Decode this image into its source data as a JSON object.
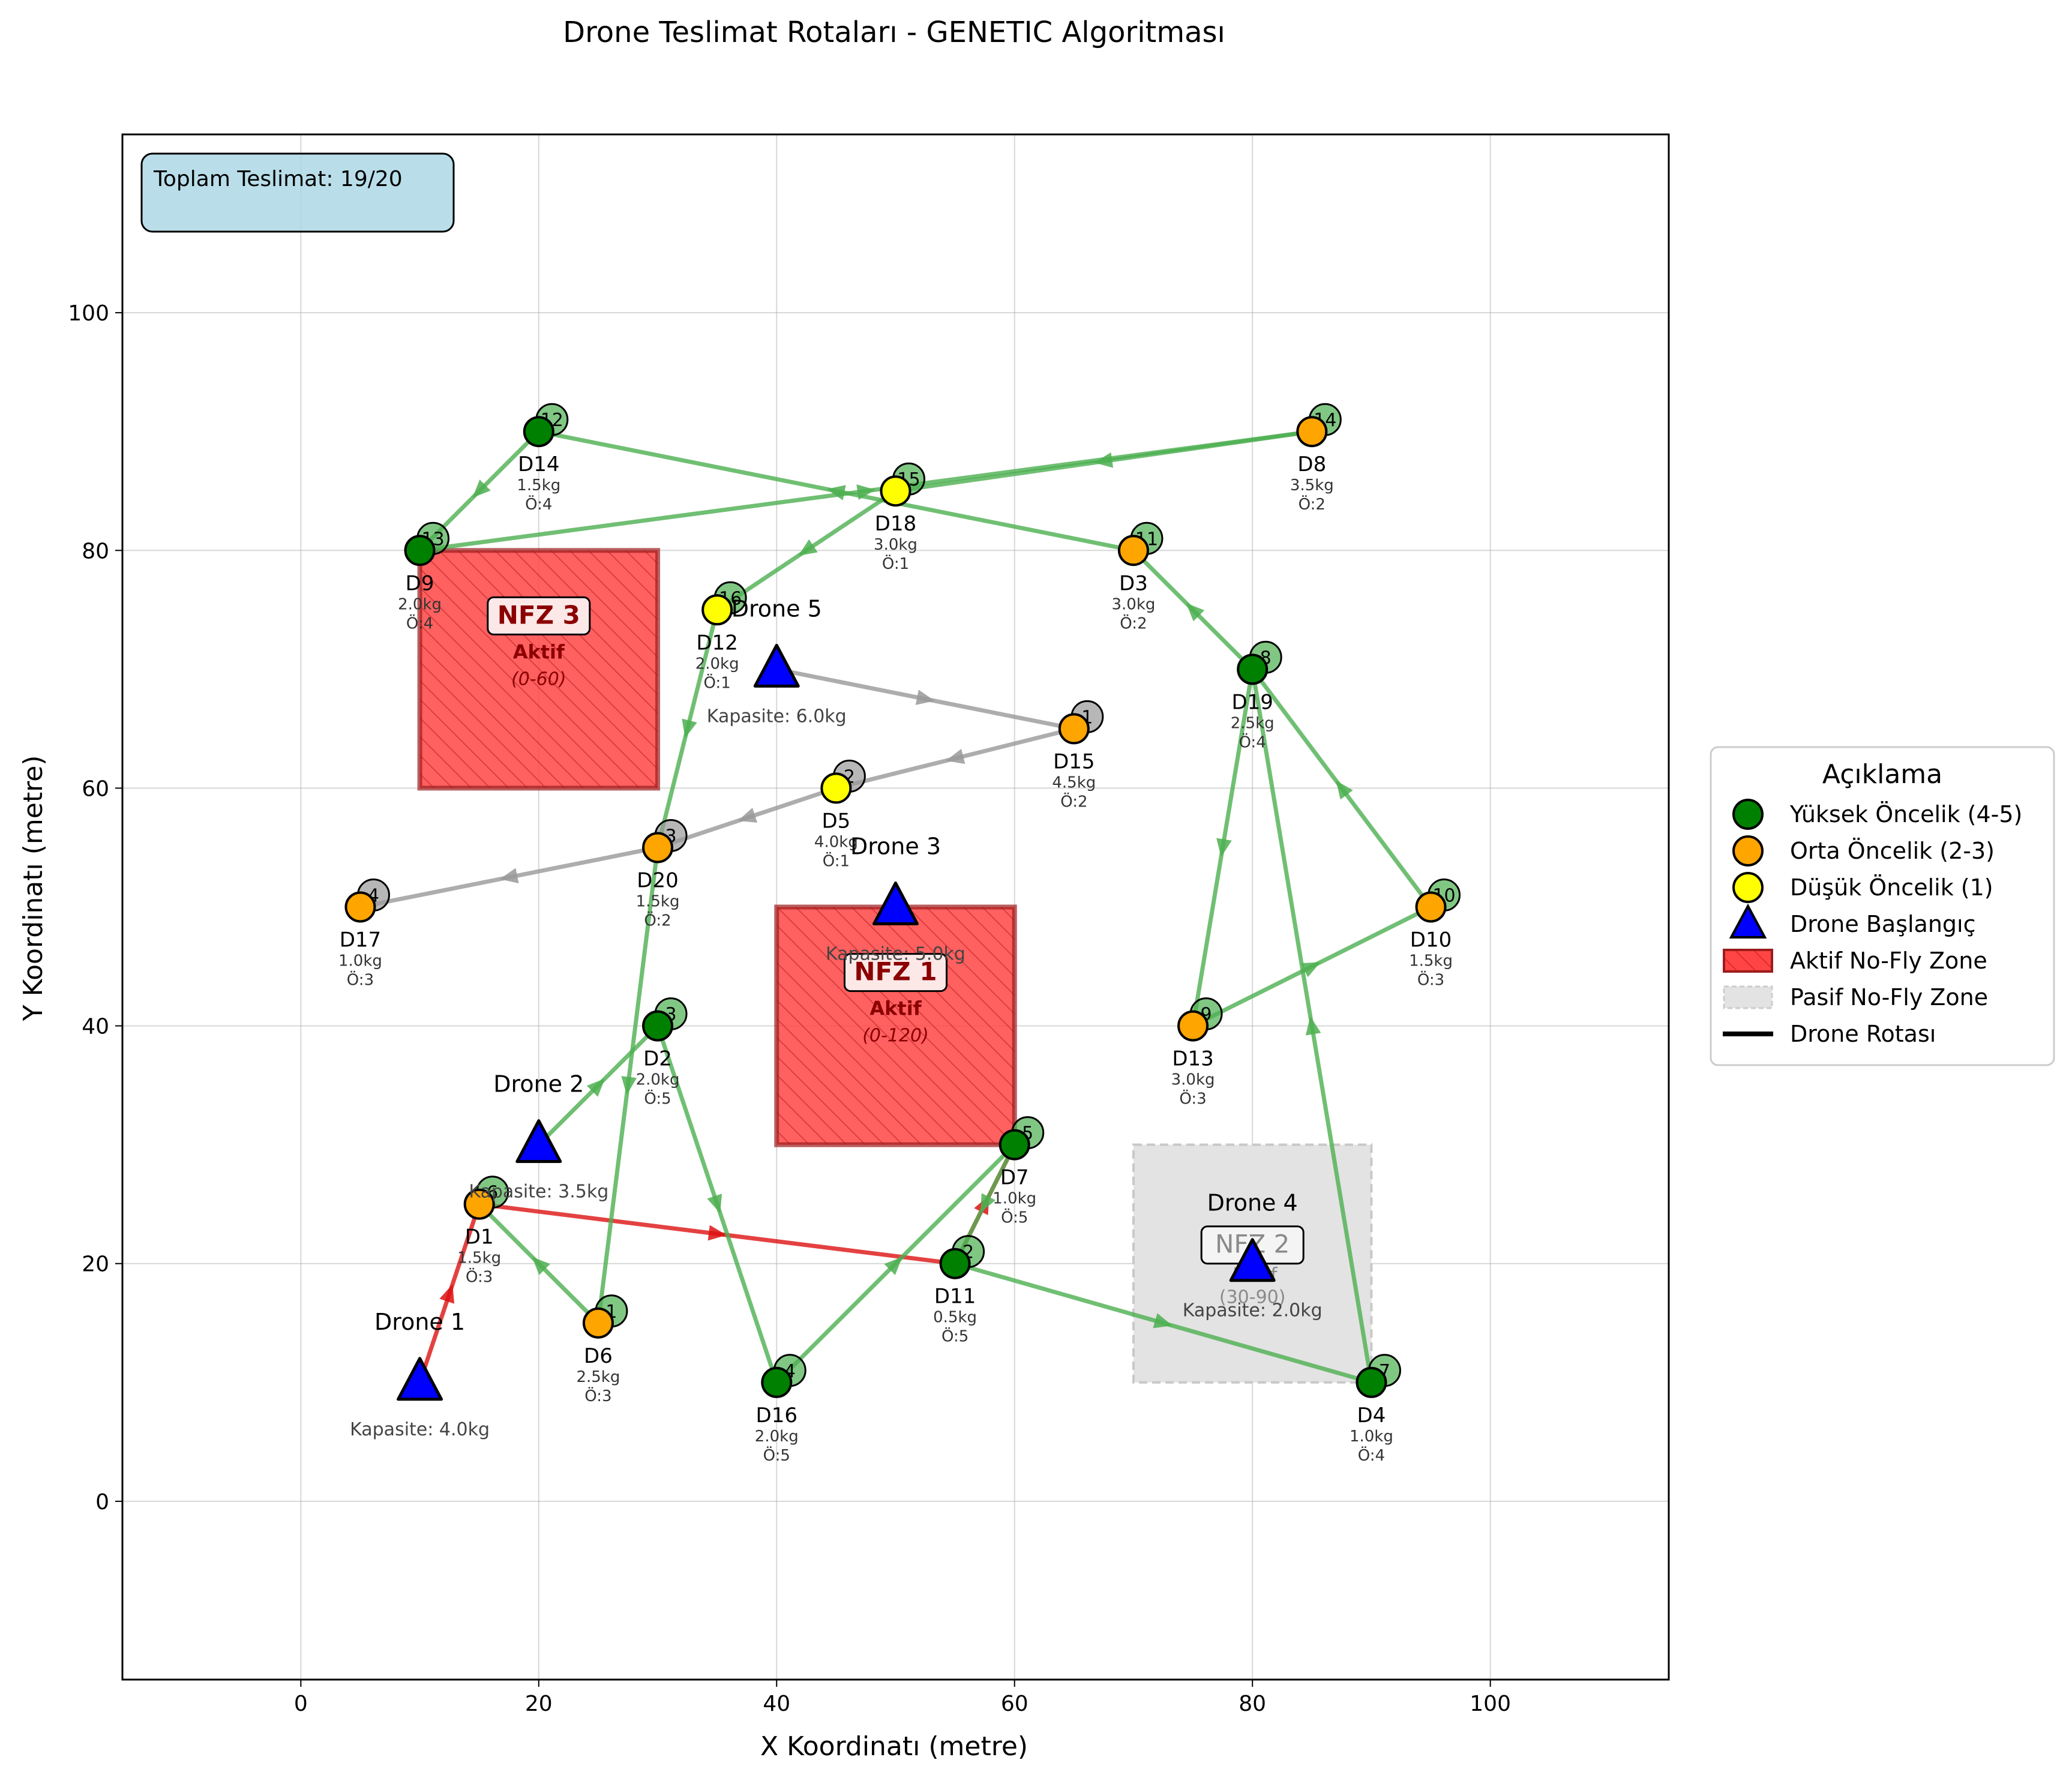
{
  "chart_data": {
    "type": "scatter",
    "title": "Drone Teslimat Rotaları - GENETIC Algoritması",
    "xlabel": "X Koordinatı (metre)",
    "ylabel": "Y Koordinatı (metre)",
    "xlim": [
      -15,
      115
    ],
    "ylim": [
      -15,
      115
    ],
    "xticks": [
      0,
      20,
      40,
      60,
      80,
      100
    ],
    "yticks": [
      0,
      20,
      40,
      60,
      80,
      100
    ],
    "grid": true,
    "info_box": "Toplam Teslimat: 19/20",
    "legend": {
      "title": "Açıklama",
      "placement": "right-outside",
      "items": [
        {
          "label": "Yüksek Öncelik (4-5)",
          "kind": "circle",
          "color": "#008000"
        },
        {
          "label": "Orta Öncelik (2-3)",
          "kind": "circle",
          "color": "#FFA500"
        },
        {
          "label": "Düşük Öncelik (1)",
          "kind": "circle",
          "color": "#FFFF00"
        },
        {
          "label": "Drone Başlangıç",
          "kind": "triangle",
          "color": "#0000FF"
        },
        {
          "label": "Aktif No-Fly Zone",
          "kind": "hatch",
          "color": "#FF4444"
        },
        {
          "label": "Pasif No-Fly Zone",
          "kind": "passive",
          "color": "#DDDDDD"
        },
        {
          "label": "Drone Rotası",
          "kind": "line",
          "color": "#000000"
        }
      ]
    },
    "no_fly_zones": [
      {
        "name": "NFZ 3",
        "status": "Aktif",
        "time": "(0-60)",
        "x0": 10,
        "x1": 30,
        "y0": 60,
        "y1": 80,
        "active": true
      },
      {
        "name": "NFZ 1",
        "status": "Aktif",
        "time": "(0-120)",
        "x0": 40,
        "x1": 60,
        "y0": 30,
        "y1": 50,
        "active": true
      },
      {
        "name": "NFZ 2",
        "status": "Pasif",
        "time": "(30-90)",
        "x0": 70,
        "x1": 90,
        "y0": 10,
        "y1": 30,
        "active": false
      }
    ],
    "deliveries": [
      {
        "id": "D1",
        "x": 15,
        "y": 25,
        "weight": "1.5kg",
        "priority": "Ö:3",
        "color": "#FFA500"
      },
      {
        "id": "D2",
        "x": 30,
        "y": 40,
        "weight": "2.0kg",
        "priority": "Ö:5",
        "color": "#008000"
      },
      {
        "id": "D3",
        "x": 70,
        "y": 80,
        "weight": "3.0kg",
        "priority": "Ö:2",
        "color": "#FFA500"
      },
      {
        "id": "D4",
        "x": 90,
        "y": 10,
        "weight": "1.0kg",
        "priority": "Ö:4",
        "color": "#008000"
      },
      {
        "id": "D5",
        "x": 45,
        "y": 60,
        "weight": "4.0kg",
        "priority": "Ö:1",
        "color": "#FFFF00"
      },
      {
        "id": "D6",
        "x": 25,
        "y": 15,
        "weight": "2.5kg",
        "priority": "Ö:3",
        "color": "#FFA500"
      },
      {
        "id": "D7",
        "x": 60,
        "y": 30,
        "weight": "1.0kg",
        "priority": "Ö:5",
        "color": "#008000"
      },
      {
        "id": "D8",
        "x": 85,
        "y": 90,
        "weight": "3.5kg",
        "priority": "Ö:2",
        "color": "#FFA500"
      },
      {
        "id": "D9",
        "x": 10,
        "y": 80,
        "weight": "2.0kg",
        "priority": "Ö:4",
        "color": "#008000"
      },
      {
        "id": "D10",
        "x": 95,
        "y": 50,
        "weight": "1.5kg",
        "priority": "Ö:3",
        "color": "#FFA500"
      },
      {
        "id": "D11",
        "x": 55,
        "y": 20,
        "weight": "0.5kg",
        "priority": "Ö:5",
        "color": "#008000"
      },
      {
        "id": "D12",
        "x": 35,
        "y": 75,
        "weight": "2.0kg",
        "priority": "Ö:1",
        "color": "#FFFF00"
      },
      {
        "id": "D13",
        "x": 75,
        "y": 40,
        "weight": "3.0kg",
        "priority": "Ö:3",
        "color": "#FFA500"
      },
      {
        "id": "D14",
        "x": 20,
        "y": 90,
        "weight": "1.5kg",
        "priority": "Ö:4",
        "color": "#008000"
      },
      {
        "id": "D15",
        "x": 65,
        "y": 65,
        "weight": "4.5kg",
        "priority": "Ö:2",
        "color": "#FFA500"
      },
      {
        "id": "D16",
        "x": 40,
        "y": 10,
        "weight": "2.0kg",
        "priority": "Ö:5",
        "color": "#008000"
      },
      {
        "id": "D17",
        "x": 5,
        "y": 50,
        "weight": "1.0kg",
        "priority": "Ö:3",
        "color": "#FFA500"
      },
      {
        "id": "D18",
        "x": 50,
        "y": 85,
        "weight": "3.0kg",
        "priority": "Ö:1",
        "color": "#FFFF00"
      },
      {
        "id": "D19",
        "x": 80,
        "y": 70,
        "weight": "2.5kg",
        "priority": "Ö:4",
        "color": "#008000"
      },
      {
        "id": "D20",
        "x": 30,
        "y": 55,
        "weight": "1.5kg",
        "priority": "Ö:2",
        "color": "#FFA500"
      }
    ],
    "drones": [
      {
        "name": "Drone 1",
        "x": 10,
        "y": 10,
        "capacity": "Kapasite: 4.0kg"
      },
      {
        "name": "Drone 2",
        "x": 20,
        "y": 30,
        "capacity": "Kapasite: 3.5kg"
      },
      {
        "name": "Drone 3",
        "x": 50,
        "y": 50,
        "capacity": "Kapasite: 5.0kg"
      },
      {
        "name": "Drone 4",
        "x": 80,
        "y": 20,
        "capacity": "Kapasite: 2.0kg"
      },
      {
        "name": "Drone 5",
        "x": 40,
        "y": 70,
        "capacity": "Kapasite: 6.0kg"
      }
    ],
    "routes": [
      {
        "color": "#DD1111",
        "path": [
          [
            10,
            10
          ],
          [
            15,
            25
          ],
          [
            55,
            20
          ],
          [
            60,
            30
          ]
        ],
        "steps": []
      },
      {
        "color": "#4CAF50",
        "path": [
          [
            20,
            30
          ],
          [
            30,
            40
          ],
          [
            40,
            10
          ],
          [
            60,
            30
          ],
          [
            55,
            20
          ],
          [
            90,
            10
          ],
          [
            80,
            70
          ],
          [
            75,
            40
          ],
          [
            95,
            50
          ],
          [
            80,
            70
          ],
          [
            70,
            80
          ],
          [
            20,
            90
          ],
          [
            10,
            80
          ],
          [
            85,
            90
          ],
          [
            50,
            85
          ],
          [
            35,
            75
          ],
          [
            30,
            55
          ],
          [
            25,
            15
          ],
          [
            15,
            25
          ]
        ],
        "steps": [
          {
            "n": "1",
            "x": 25,
            "y": 15
          },
          {
            "n": "2",
            "x": 55,
            "y": 20
          },
          {
            "n": "3",
            "x": 30,
            "y": 40
          },
          {
            "n": "4",
            "x": 40,
            "y": 10
          },
          {
            "n": "5",
            "x": 60,
            "y": 30
          },
          {
            "n": "6",
            "x": 15,
            "y": 25
          },
          {
            "n": "7",
            "x": 90,
            "y": 10
          },
          {
            "n": "8",
            "x": 80,
            "y": 70
          },
          {
            "n": "9",
            "x": 75,
            "y": 40
          },
          {
            "n": "10",
            "x": 95,
            "y": 50
          },
          {
            "n": "11",
            "x": 70,
            "y": 80
          },
          {
            "n": "12",
            "x": 20,
            "y": 90
          },
          {
            "n": "13",
            "x": 10,
            "y": 80
          },
          {
            "n": "14",
            "x": 85,
            "y": 90
          },
          {
            "n": "15",
            "x": 50,
            "y": 85
          },
          {
            "n": "16",
            "x": 35,
            "y": 75
          }
        ]
      },
      {
        "color": "#999999",
        "path": [
          [
            40,
            70
          ],
          [
            65,
            65
          ],
          [
            45,
            60
          ],
          [
            30,
            55
          ],
          [
            5,
            50
          ]
        ],
        "steps": [
          {
            "n": "1",
            "x": 65,
            "y": 65
          },
          {
            "n": "2",
            "x": 45,
            "y": 60
          },
          {
            "n": "3",
            "x": 30,
            "y": 55
          },
          {
            "n": "4",
            "x": 5,
            "y": 50
          }
        ]
      }
    ]
  }
}
